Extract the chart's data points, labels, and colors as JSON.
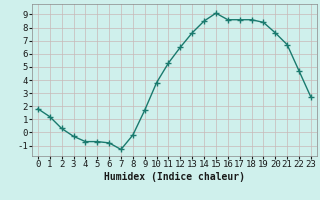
{
  "x": [
    0,
    1,
    2,
    3,
    4,
    5,
    6,
    7,
    8,
    9,
    10,
    11,
    12,
    13,
    14,
    15,
    16,
    17,
    18,
    19,
    20,
    21,
    22,
    23
  ],
  "y": [
    1.8,
    1.2,
    0.3,
    -0.3,
    -0.7,
    -0.7,
    -0.8,
    -1.3,
    -0.2,
    1.7,
    3.8,
    5.3,
    6.5,
    7.6,
    8.5,
    9.1,
    8.6,
    8.6,
    8.6,
    8.4,
    7.6,
    6.7,
    4.7,
    2.7
  ],
  "line_color": "#1a7a6e",
  "marker": "+",
  "marker_size": 4,
  "marker_lw": 1.0,
  "line_width": 1.0,
  "bg_color": "#cff0ec",
  "grid_color": "#c8b8b8",
  "xlabel": "Humidex (Indice chaleur)",
  "xlabel_fontsize": 7,
  "tick_fontsize": 6.5,
  "xlim": [
    -0.5,
    23.5
  ],
  "ylim": [
    -1.8,
    9.8
  ],
  "yticks": [
    -1,
    0,
    1,
    2,
    3,
    4,
    5,
    6,
    7,
    8,
    9
  ],
  "xticks": [
    0,
    1,
    2,
    3,
    4,
    5,
    6,
    7,
    8,
    9,
    10,
    11,
    12,
    13,
    14,
    15,
    16,
    17,
    18,
    19,
    20,
    21,
    22,
    23
  ],
  "xtick_labels": [
    "0",
    "1",
    "2",
    "3",
    "4",
    "5",
    "6",
    "7",
    "8",
    "9",
    "10",
    "11",
    "12",
    "13",
    "14",
    "15",
    "16",
    "17",
    "18",
    "19",
    "20",
    "21",
    "22",
    "23"
  ]
}
